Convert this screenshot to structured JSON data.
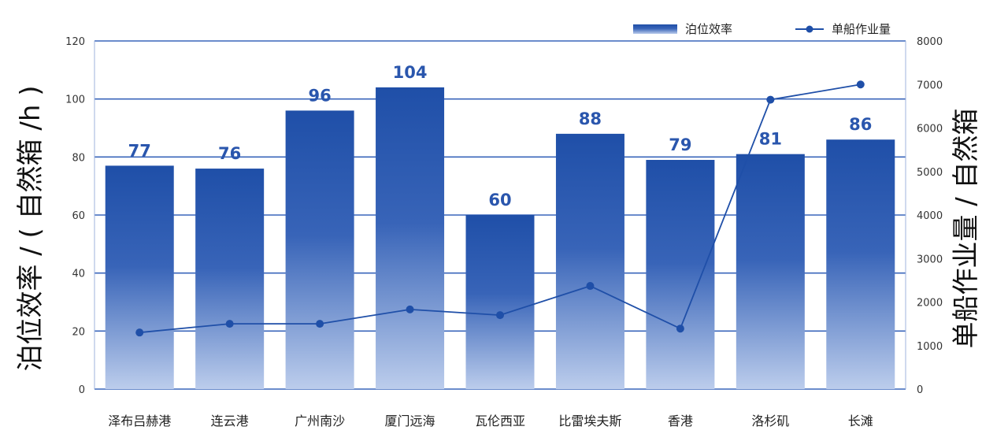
{
  "chart_data": {
    "type": "bar",
    "categories": [
      "泽布吕赫港",
      "连云港",
      "广州南沙",
      "厦门远海",
      "瓦伦西亚",
      "比雷埃夫斯",
      "香港",
      "洛杉矶",
      "长滩"
    ],
    "series": [
      {
        "name": "泊位效率",
        "type": "bar",
        "axis": "left",
        "values": [
          77,
          76,
          96,
          104,
          60,
          88,
          79,
          81,
          86
        ]
      },
      {
        "name": "单船作业量",
        "type": "line",
        "axis": "right",
        "values": [
          1300,
          1500,
          1500,
          1830,
          1700,
          2370,
          1390,
          6650,
          7000
        ]
      }
    ],
    "ylabel_left": "泊位效率 / ( 自然箱 /h )",
    "ylabel_right": "单船作业量 / 自然箱",
    "ylim_left": [
      0,
      120
    ],
    "ylim_right": [
      0,
      8000
    ],
    "yticks_left": [
      0,
      20,
      40,
      60,
      80,
      100,
      120
    ],
    "yticks_right": [
      0,
      1000,
      2000,
      3000,
      4000,
      5000,
      6000,
      7000,
      8000
    ],
    "grid": "horizontal",
    "legend_position": "top-right",
    "colors": {
      "bar_top": "#1f4fa8",
      "bar_bottom": "#b7c8ea",
      "line": "#1f4fa8",
      "label": "#2a56ad",
      "grid": "#3a66bb"
    }
  }
}
